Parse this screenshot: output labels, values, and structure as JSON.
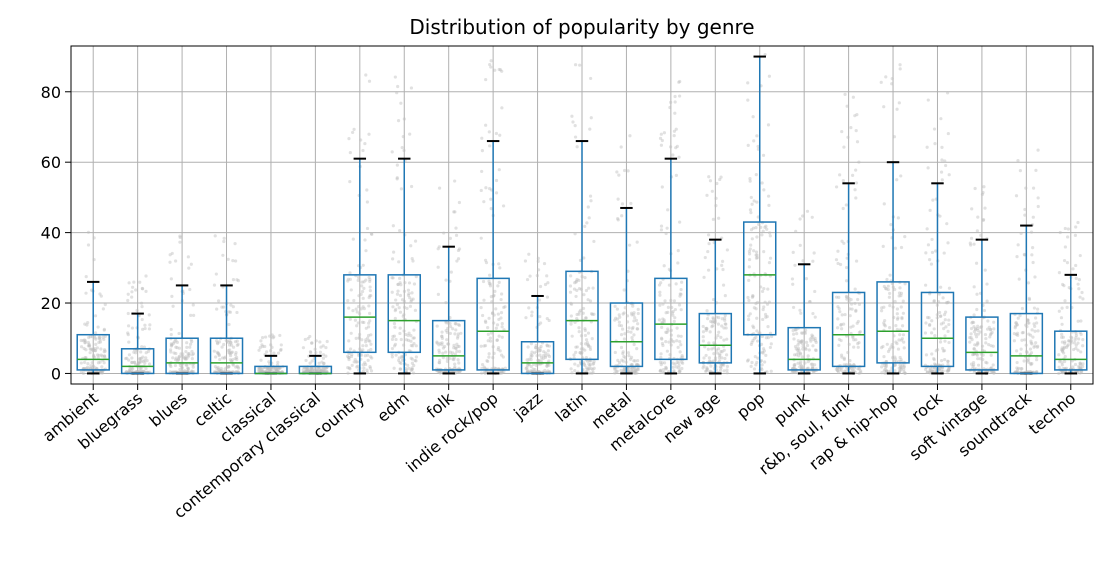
{
  "chart_data": {
    "type": "box",
    "title": "Distribution of popularity by genre",
    "xlabel": "",
    "ylabel": "",
    "ylim": [
      -3,
      93
    ],
    "yticks": [
      0,
      20,
      40,
      60,
      80
    ],
    "grid": true,
    "overlay": "jittered points",
    "colors": {
      "box": "#1f77b4",
      "median": "#2ca02c",
      "cap": "#000000",
      "points": "#bdbdbd",
      "grid": "#b0b0b0"
    },
    "categories": [
      "ambient",
      "bluegrass",
      "blues",
      "celtic",
      "classical",
      "contemporary classical",
      "country",
      "edm",
      "folk",
      "indie rock/pop",
      "jazz",
      "latin",
      "metal",
      "metalcore",
      "new age",
      "pop",
      "punk",
      "r&b, soul, funk",
      "rap & hip-hop",
      "rock",
      "soft vintage",
      "soundtrack",
      "techno"
    ],
    "boxes": [
      {
        "min": 0,
        "q1": 1,
        "median": 4,
        "q3": 11,
        "max": 26
      },
      {
        "min": 0,
        "q1": 0,
        "median": 2,
        "q3": 7,
        "max": 17
      },
      {
        "min": 0,
        "q1": 0,
        "median": 3,
        "q3": 10,
        "max": 25
      },
      {
        "min": 0,
        "q1": 0,
        "median": 3,
        "q3": 10,
        "max": 25
      },
      {
        "min": 0,
        "q1": 0,
        "median": 0,
        "q3": 2,
        "max": 5
      },
      {
        "min": 0,
        "q1": 0,
        "median": 0,
        "q3": 2,
        "max": 5
      },
      {
        "min": 0,
        "q1": 6,
        "median": 16,
        "q3": 28,
        "max": 61
      },
      {
        "min": 0,
        "q1": 6,
        "median": 15,
        "q3": 28,
        "max": 61
      },
      {
        "min": 0,
        "q1": 1,
        "median": 5,
        "q3": 15,
        "max": 36
      },
      {
        "min": 0,
        "q1": 1,
        "median": 12,
        "q3": 27,
        "max": 66
      },
      {
        "min": 0,
        "q1": 0,
        "median": 3,
        "q3": 9,
        "max": 22
      },
      {
        "min": 0,
        "q1": 4,
        "median": 15,
        "q3": 29,
        "max": 66
      },
      {
        "min": 0,
        "q1": 2,
        "median": 9,
        "q3": 20,
        "max": 47
      },
      {
        "min": 0,
        "q1": 4,
        "median": 14,
        "q3": 27,
        "max": 61
      },
      {
        "min": 0,
        "q1": 3,
        "median": 8,
        "q3": 17,
        "max": 38
      },
      {
        "min": 0,
        "q1": 11,
        "median": 28,
        "q3": 43,
        "max": 90
      },
      {
        "min": 0,
        "q1": 1,
        "median": 4,
        "q3": 13,
        "max": 31
      },
      {
        "min": 0,
        "q1": 2,
        "median": 11,
        "q3": 23,
        "max": 54
      },
      {
        "min": 0,
        "q1": 3,
        "median": 12,
        "q3": 26,
        "max": 60
      },
      {
        "min": 0,
        "q1": 2,
        "median": 10,
        "q3": 23,
        "max": 54
      },
      {
        "min": 0,
        "q1": 1,
        "median": 6,
        "q3": 16,
        "max": 38
      },
      {
        "min": 0,
        "q1": 0,
        "median": 5,
        "q3": 17,
        "max": 42
      },
      {
        "min": 0,
        "q1": 1,
        "median": 4,
        "q3": 12,
        "max": 28
      }
    ]
  }
}
